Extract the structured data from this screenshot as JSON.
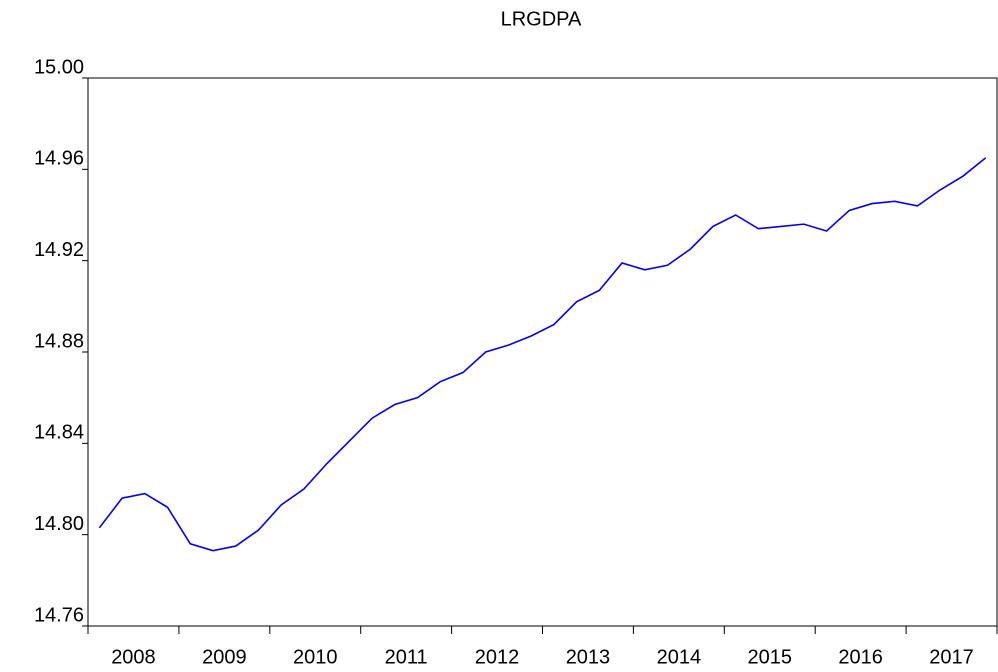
{
  "chart_data": {
    "type": "line",
    "title": "LRGDPA",
    "categories": [
      "2008",
      null,
      null,
      null,
      "2009",
      null,
      null,
      null,
      "2010",
      null,
      null,
      null,
      "2011",
      null,
      null,
      null,
      "2012",
      null,
      null,
      null,
      "2013",
      null,
      null,
      null,
      "2014",
      null,
      null,
      null,
      "2015",
      null,
      null,
      null,
      "2016",
      null,
      null,
      null,
      "2017",
      null,
      null,
      null
    ],
    "series": [
      {
        "name": "LRGDPA",
        "color": "#0000ff",
        "values": [
          14.803,
          14.816,
          14.818,
          14.812,
          14.796,
          14.793,
          14.795,
          14.802,
          14.813,
          14.82,
          14.831,
          14.841,
          14.851,
          14.857,
          14.86,
          14.867,
          14.871,
          14.88,
          14.883,
          14.887,
          14.892,
          14.902,
          14.907,
          14.919,
          14.916,
          14.918,
          14.925,
          14.935,
          14.94,
          14.934,
          14.935,
          14.936,
          14.933,
          14.942,
          14.945,
          14.946,
          14.944,
          14.951,
          14.957,
          14.965
        ]
      }
    ],
    "ylim": [
      14.76,
      15.0
    ],
    "yticks": [
      14.76,
      {
        "value": 14.8,
        "label": "14.80"
      },
      14.84,
      14.88,
      14.92,
      14.96,
      {
        "value": 15.0,
        "label": "15.00"
      }
    ],
    "grid": false
  }
}
